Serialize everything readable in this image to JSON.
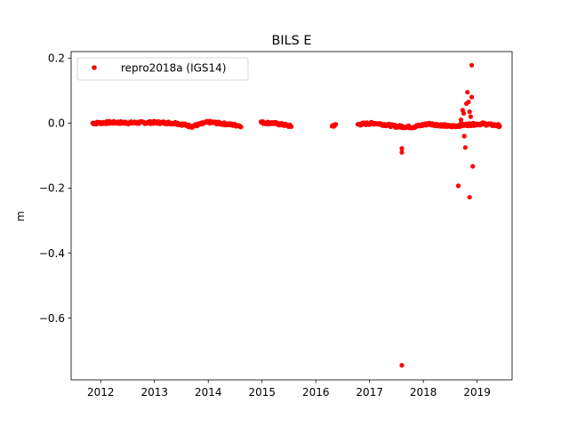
{
  "chart_data": {
    "type": "scatter",
    "title": "BILS E",
    "xlabel": "",
    "ylabel": "m",
    "xlim": [
      2011.45,
      2019.65
    ],
    "ylim": [
      -0.79,
      0.22
    ],
    "xticks": [
      2012,
      2013,
      2014,
      2015,
      2016,
      2017,
      2018,
      2019
    ],
    "xtick_labels": [
      "2012",
      "2013",
      "2014",
      "2015",
      "2016",
      "2017",
      "2018",
      "2019"
    ],
    "yticks": [
      0.2,
      0.0,
      -0.2,
      -0.4,
      -0.6
    ],
    "ytick_labels": [
      "0.2",
      "0.0",
      "−0.2",
      "−0.4",
      "−0.6"
    ],
    "grid": false,
    "legend": {
      "location": "top-left"
    },
    "series": [
      {
        "name": "repro2018a (IGS14)",
        "color": "#ff0000",
        "marker": "circle",
        "segments": [
          {
            "x_range": [
              2011.85,
              2014.62
            ],
            "points": [
              [
                2011.85,
                0.0
              ],
              [
                2012.2,
                0.002
              ],
              [
                2012.6,
                0.001
              ],
              [
                2013.0,
                0.002
              ],
              [
                2013.4,
                0.0
              ],
              [
                2013.7,
                -0.01
              ],
              [
                2014.0,
                0.003
              ],
              [
                2014.3,
                -0.002
              ],
              [
                2014.6,
                -0.008
              ]
            ]
          },
          {
            "x_range": [
              2014.98,
              2015.55
            ],
            "points": [
              [
                2014.98,
                0.002
              ],
              [
                2015.2,
                0.0
              ],
              [
                2015.4,
                -0.005
              ],
              [
                2015.55,
                -0.01
              ]
            ]
          },
          {
            "x_range": [
              2016.3,
              2016.38
            ],
            "points": [
              [
                2016.3,
                -0.008
              ],
              [
                2016.38,
                -0.006
              ]
            ]
          },
          {
            "x_range": [
              2016.78,
              2019.42
            ],
            "points": [
              [
                2016.78,
                -0.004
              ],
              [
                2017.1,
                0.0
              ],
              [
                2017.5,
                -0.01
              ],
              [
                2017.8,
                -0.012
              ],
              [
                2018.1,
                -0.002
              ],
              [
                2018.5,
                -0.01
              ],
              [
                2018.8,
                -0.005
              ],
              [
                2019.1,
                -0.002
              ],
              [
                2019.42,
                -0.008
              ]
            ]
          }
        ],
        "outliers": [
          [
            2017.6,
            -0.745
          ],
          [
            2017.6,
            -0.09
          ],
          [
            2017.6,
            -0.078
          ],
          [
            2018.65,
            -0.193
          ],
          [
            2018.7,
            0.01
          ],
          [
            2018.73,
            0.04
          ],
          [
            2018.75,
            0.03
          ],
          [
            2018.76,
            -0.04
          ],
          [
            2018.78,
            -0.075
          ],
          [
            2018.8,
            0.06
          ],
          [
            2018.82,
            0.095
          ],
          [
            2018.84,
            0.065
          ],
          [
            2018.86,
            0.035
          ],
          [
            2018.86,
            -0.228
          ],
          [
            2018.9,
            0.08
          ],
          [
            2018.9,
            0.178
          ],
          [
            2018.92,
            -0.133
          ],
          [
            2018.88,
            0.02
          ]
        ]
      }
    ]
  }
}
